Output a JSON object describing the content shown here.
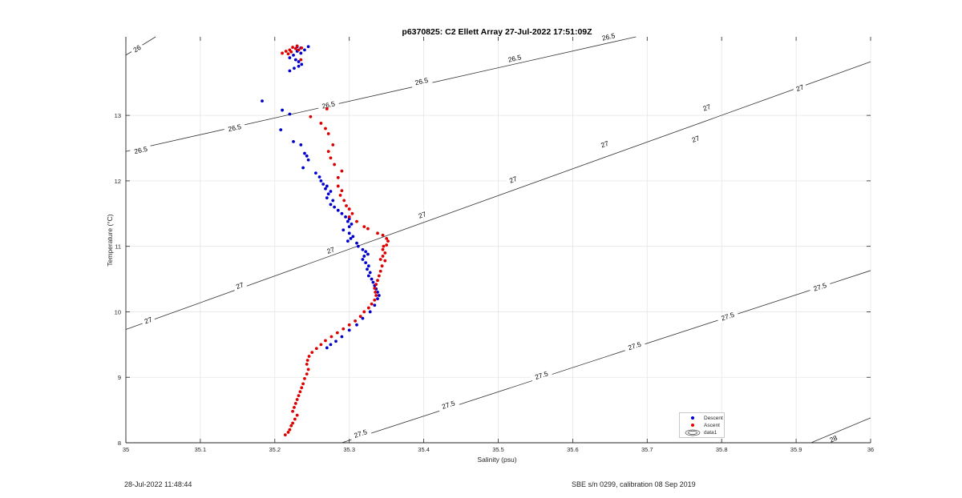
{
  "figure": {
    "footer_left": "28-Jul-2022 11:48:44",
    "footer_right": "SBE s/n 0299, calibration 08 Sep 2019"
  },
  "chart_data": {
    "type": "scatter",
    "title": "p6370825: C2 Ellett Array 27-Jul-2022 17:51:09Z",
    "xlabel": "Salinity (psu)",
    "ylabel": "Temperature (°C)",
    "xlim": [
      35,
      36
    ],
    "ylim": [
      8,
      14.2
    ],
    "xticks": [
      "35",
      "35.1",
      "35.2",
      "35.3",
      "35.4",
      "35.5",
      "35.6",
      "35.7",
      "35.8",
      "35.9",
      "36"
    ],
    "yticks": [
      "8",
      "9",
      "10",
      "11",
      "12",
      "13"
    ],
    "grid": true,
    "legend_position": "bottom-right",
    "legend": [
      "Descent",
      "Ascent",
      "data1"
    ],
    "colors": {
      "Descent": "#0000cc",
      "Ascent": "#dd0000",
      "contour": "#333333"
    },
    "contours": [
      {
        "label": "26",
        "line": [
          [
            35.0,
            13.92
          ],
          [
            35.04,
            14.2
          ]
        ],
        "labels": [
          [
            35.015,
            14.02
          ]
        ]
      },
      {
        "label": "26.5",
        "line": [
          [
            35.0,
            12.45
          ],
          [
            35.685,
            14.2
          ]
        ],
        "labels": [
          [
            35.02,
            12.47
          ],
          [
            35.146,
            12.81
          ],
          [
            35.272,
            13.16
          ],
          [
            35.397,
            13.52
          ],
          [
            35.522,
            13.87
          ],
          [
            35.648,
            14.2
          ]
        ]
      },
      {
        "label": "27",
        "line": [
          [
            35.0,
            9.73
          ],
          [
            36.0,
            13.82
          ]
        ],
        "labels": [
          [
            35.03,
            9.87
          ],
          [
            35.153,
            10.4
          ],
          [
            35.275,
            10.94
          ],
          [
            35.398,
            11.48
          ],
          [
            35.52,
            12.02
          ],
          [
            35.643,
            12.56
          ],
          [
            35.765,
            12.64
          ],
          [
            35.78,
            13.12
          ],
          [
            35.905,
            13.42
          ]
        ]
      },
      {
        "label": "27.5",
        "line": [
          [
            35.29,
            8.0
          ],
          [
            36.0,
            10.63
          ]
        ],
        "labels": [
          [
            35.315,
            8.14
          ],
          [
            35.433,
            8.58
          ],
          [
            35.558,
            9.03
          ],
          [
            35.683,
            9.48
          ],
          [
            35.808,
            9.93
          ],
          [
            35.932,
            10.38
          ]
        ]
      },
      {
        "label": "28",
        "line": [
          [
            35.92,
            8.0
          ],
          [
            36.0,
            8.38
          ]
        ],
        "labels": [
          [
            35.95,
            8.06
          ]
        ]
      }
    ],
    "series": [
      {
        "name": "Descent",
        "points": [
          [
            35.23,
            14.05
          ],
          [
            35.245,
            14.05
          ],
          [
            35.235,
            14.03
          ],
          [
            35.24,
            14.0
          ],
          [
            35.23,
            13.98
          ],
          [
            35.235,
            13.95
          ],
          [
            35.225,
            13.92
          ],
          [
            35.22,
            13.88
          ],
          [
            35.228,
            13.85
          ],
          [
            35.232,
            13.82
          ],
          [
            35.236,
            13.78
          ],
          [
            35.232,
            13.75
          ],
          [
            35.226,
            13.72
          ],
          [
            35.22,
            13.68
          ],
          [
            35.183,
            13.22
          ],
          [
            35.21,
            13.08
          ],
          [
            35.22,
            13.02
          ],
          [
            35.208,
            12.78
          ],
          [
            35.225,
            12.6
          ],
          [
            35.235,
            12.55
          ],
          [
            35.24,
            12.42
          ],
          [
            35.243,
            12.38
          ],
          [
            35.245,
            12.32
          ],
          [
            35.238,
            12.2
          ],
          [
            35.255,
            12.12
          ],
          [
            35.26,
            12.06
          ],
          [
            35.262,
            12.0
          ],
          [
            35.265,
            11.95
          ],
          [
            35.27,
            11.92
          ],
          [
            35.268,
            11.88
          ],
          [
            35.275,
            11.84
          ],
          [
            35.272,
            11.8
          ],
          [
            35.27,
            11.74
          ],
          [
            35.278,
            11.7
          ],
          [
            35.275,
            11.64
          ],
          [
            35.28,
            11.6
          ],
          [
            35.285,
            11.55
          ],
          [
            35.29,
            11.5
          ],
          [
            35.295,
            11.45
          ],
          [
            35.3,
            11.42
          ],
          [
            35.298,
            11.38
          ],
          [
            35.303,
            11.34
          ],
          [
            35.3,
            11.3
          ],
          [
            35.292,
            11.25
          ],
          [
            35.3,
            11.2
          ],
          [
            35.305,
            11.15
          ],
          [
            35.302,
            11.12
          ],
          [
            35.298,
            11.08
          ],
          [
            35.31,
            11.05
          ],
          [
            35.312,
            11.0
          ],
          [
            35.318,
            10.95
          ],
          [
            35.322,
            10.92
          ],
          [
            35.325,
            10.88
          ],
          [
            35.32,
            10.85
          ],
          [
            35.318,
            10.8
          ],
          [
            35.322,
            10.75
          ],
          [
            35.326,
            10.7
          ],
          [
            35.324,
            10.65
          ],
          [
            35.328,
            10.6
          ],
          [
            35.326,
            10.55
          ],
          [
            35.33,
            10.5
          ],
          [
            35.332,
            10.45
          ],
          [
            35.334,
            10.4
          ],
          [
            35.336,
            10.35
          ],
          [
            35.338,
            10.3
          ],
          [
            35.34,
            10.25
          ],
          [
            35.338,
            10.2
          ],
          [
            35.334,
            10.1
          ],
          [
            35.328,
            10.0
          ],
          [
            35.318,
            9.9
          ],
          [
            35.31,
            9.8
          ],
          [
            35.3,
            9.72
          ],
          [
            35.29,
            9.62
          ],
          [
            35.282,
            9.55
          ],
          [
            35.275,
            9.5
          ],
          [
            35.27,
            9.45
          ]
        ]
      },
      {
        "name": "Ascent",
        "points": [
          [
            35.23,
            14.06
          ],
          [
            35.224,
            14.04
          ],
          [
            35.236,
            14.03
          ],
          [
            35.228,
            14.02
          ],
          [
            35.22,
            14.0
          ],
          [
            35.232,
            14.0
          ],
          [
            35.215,
            13.98
          ],
          [
            35.222,
            13.97
          ],
          [
            35.21,
            13.95
          ],
          [
            35.218,
            13.94
          ],
          [
            35.235,
            13.85
          ],
          [
            35.27,
            13.1
          ],
          [
            35.248,
            12.98
          ],
          [
            35.262,
            12.88
          ],
          [
            35.268,
            12.8
          ],
          [
            35.272,
            12.72
          ],
          [
            35.278,
            12.55
          ],
          [
            35.272,
            12.45
          ],
          [
            35.275,
            12.35
          ],
          [
            35.28,
            12.25
          ],
          [
            35.285,
            12.05
          ],
          [
            35.29,
            12.15
          ],
          [
            35.285,
            11.92
          ],
          [
            35.29,
            11.85
          ],
          [
            35.288,
            11.78
          ],
          [
            35.293,
            11.7
          ],
          [
            35.296,
            11.62
          ],
          [
            35.3,
            11.57
          ],
          [
            35.304,
            11.5
          ],
          [
            35.3,
            11.45
          ],
          [
            35.31,
            11.38
          ],
          [
            35.32,
            11.3
          ],
          [
            35.325,
            11.27
          ],
          [
            35.338,
            11.2
          ],
          [
            35.345,
            11.17
          ],
          [
            35.35,
            11.12
          ],
          [
            35.352,
            11.08
          ],
          [
            35.35,
            11.02
          ],
          [
            35.346,
            11.0
          ],
          [
            35.345,
            10.95
          ],
          [
            35.348,
            10.9
          ],
          [
            35.345,
            10.85
          ],
          [
            35.342,
            10.8
          ],
          [
            35.348,
            10.78
          ],
          [
            35.344,
            10.7
          ],
          [
            35.342,
            10.62
          ],
          [
            35.34,
            10.55
          ],
          [
            35.338,
            10.48
          ],
          [
            35.336,
            10.42
          ],
          [
            35.334,
            10.36
          ],
          [
            35.335,
            10.3
          ],
          [
            35.336,
            10.25
          ],
          [
            35.334,
            10.18
          ],
          [
            35.33,
            10.12
          ],
          [
            35.326,
            10.06
          ],
          [
            35.32,
            10.0
          ],
          [
            35.315,
            9.93
          ],
          [
            35.308,
            9.86
          ],
          [
            35.3,
            9.8
          ],
          [
            35.292,
            9.74
          ],
          [
            35.284,
            9.68
          ],
          [
            35.276,
            9.62
          ],
          [
            35.268,
            9.56
          ],
          [
            35.262,
            9.5
          ],
          [
            35.256,
            9.44
          ],
          [
            35.25,
            9.38
          ],
          [
            35.246,
            9.32
          ],
          [
            35.244,
            9.26
          ],
          [
            35.243,
            9.2
          ],
          [
            35.245,
            9.12
          ],
          [
            35.243,
            9.05
          ],
          [
            35.24,
            8.98
          ],
          [
            35.238,
            8.9
          ],
          [
            35.236,
            8.84
          ],
          [
            35.234,
            8.78
          ],
          [
            35.232,
            8.72
          ],
          [
            35.23,
            8.66
          ],
          [
            35.228,
            8.6
          ],
          [
            35.226,
            8.54
          ],
          [
            35.224,
            8.48
          ],
          [
            35.23,
            8.42
          ],
          [
            35.227,
            8.36
          ],
          [
            35.224,
            8.3
          ],
          [
            35.222,
            8.26
          ],
          [
            35.22,
            8.2
          ],
          [
            35.218,
            8.16
          ],
          [
            35.214,
            8.12
          ]
        ]
      }
    ]
  }
}
